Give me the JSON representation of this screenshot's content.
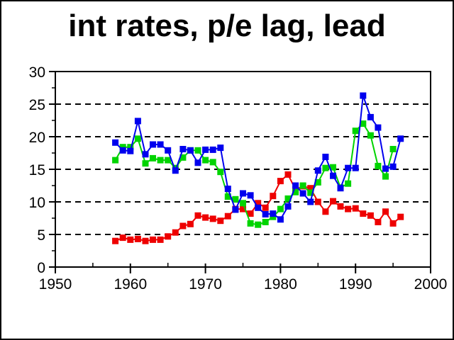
{
  "title": "int rates, p/e lag, lead",
  "chart_data": {
    "type": "line",
    "title": "int rates, p/e lag, lead",
    "xlabel": "",
    "ylabel": "",
    "xlim": [
      1950,
      2000
    ],
    "ylim": [
      0,
      30
    ],
    "x_ticks": [
      1950,
      1960,
      1970,
      1980,
      1990,
      2000
    ],
    "x_minor_step": 5,
    "y_ticks": [
      0,
      5,
      10,
      15,
      20,
      25,
      30
    ],
    "y_minor_step": 2.5,
    "grid_values": [
      5,
      10,
      15,
      20,
      25
    ],
    "grid_style": "dashed",
    "legend": "none",
    "marker": "square",
    "frame_color": "#000000",
    "background_color": "#ffffff",
    "series": [
      {
        "name": "int rates",
        "color": "#ee0000",
        "start_year": 1958,
        "values": [
          4.0,
          4.5,
          4.2,
          4.3,
          4.0,
          4.2,
          4.2,
          4.7,
          5.3,
          6.3,
          6.6,
          7.9,
          7.6,
          7.4,
          7.1,
          7.8,
          8.9,
          8.9,
          8.2,
          9.8,
          9.1,
          10.9,
          13.2,
          14.2,
          11.9,
          12.4,
          12.1,
          10.0,
          8.5,
          10.1,
          9.3,
          8.9,
          9.0,
          8.2,
          7.9,
          6.9,
          8.5,
          6.7,
          7.7
        ]
      },
      {
        "name": "p/e lag",
        "color": "#00d400",
        "start_year": 1958,
        "values": [
          16.4,
          18.4,
          18.4,
          19.7,
          15.9,
          16.7,
          16.4,
          16.4,
          15.2,
          16.8,
          17.9,
          17.9,
          16.4,
          16.1,
          14.6,
          10.8,
          10.4,
          9.8,
          6.7,
          6.5,
          6.9,
          7.7,
          8.9,
          10.5,
          11.5,
          12.5,
          11.4,
          13.0,
          15.2,
          15.3,
          12.2,
          12.8,
          20.9,
          22.0,
          20.2,
          15.5,
          13.9,
          18.1
        ]
      },
      {
        "name": "p/e lead",
        "color": "#0000ee",
        "start_year": 1958,
        "values": [
          19.1,
          17.9,
          17.8,
          22.4,
          17.3,
          18.8,
          18.8,
          17.9,
          14.8,
          18.1,
          17.9,
          16.0,
          18.0,
          18.0,
          18.3,
          12.0,
          8.8,
          11.3,
          11.0,
          9.1,
          8.1,
          8.2,
          7.3,
          9.3,
          12.5,
          11.3,
          10.0,
          14.8,
          16.9,
          14.0,
          12.1,
          15.2,
          15.2,
          26.3,
          23.0,
          21.4,
          15.1,
          15.4,
          19.7
        ]
      }
    ]
  }
}
